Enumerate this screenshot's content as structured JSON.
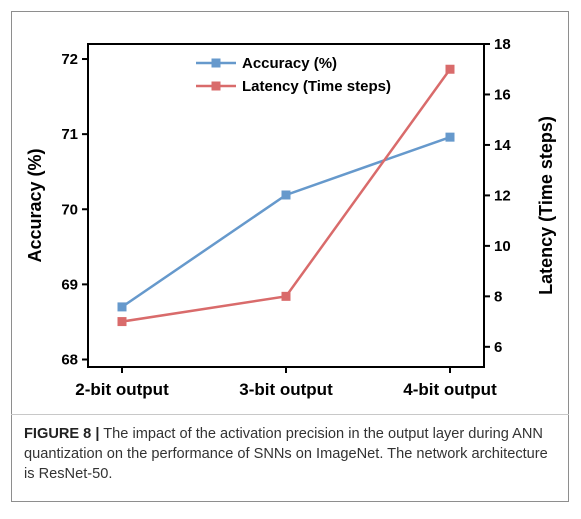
{
  "chart_data": {
    "type": "line",
    "categories": [
      "2-bit output",
      "3-bit output",
      "4-bit output"
    ],
    "series": [
      {
        "name": "Accuracy (%)",
        "axis": "left",
        "color": "#6699cc",
        "values": [
          68.7,
          70.19,
          70.96
        ]
      },
      {
        "name": "Latency (Time steps)",
        "axis": "right",
        "color": "#d96b6b",
        "values": [
          7,
          8,
          17
        ]
      }
    ],
    "ylabel": "Accuracy (%)",
    "y2label": "Latency (Time steps)",
    "ylim": [
      67.9,
      72.2
    ],
    "y2lim": [
      5.2,
      18
    ],
    "yticks": [
      "68",
      "69",
      "70",
      "71",
      "72"
    ],
    "y2ticks": [
      "6",
      "8",
      "10",
      "12",
      "14",
      "16",
      "18"
    ],
    "legend": "top-center",
    "grid": false
  },
  "caption": {
    "label": "FIGURE 8 |",
    "text": "The impact of the activation precision in the output layer during ANN quantization on the performance of SNNs on ImageNet. The network architecture is ResNet-50."
  }
}
